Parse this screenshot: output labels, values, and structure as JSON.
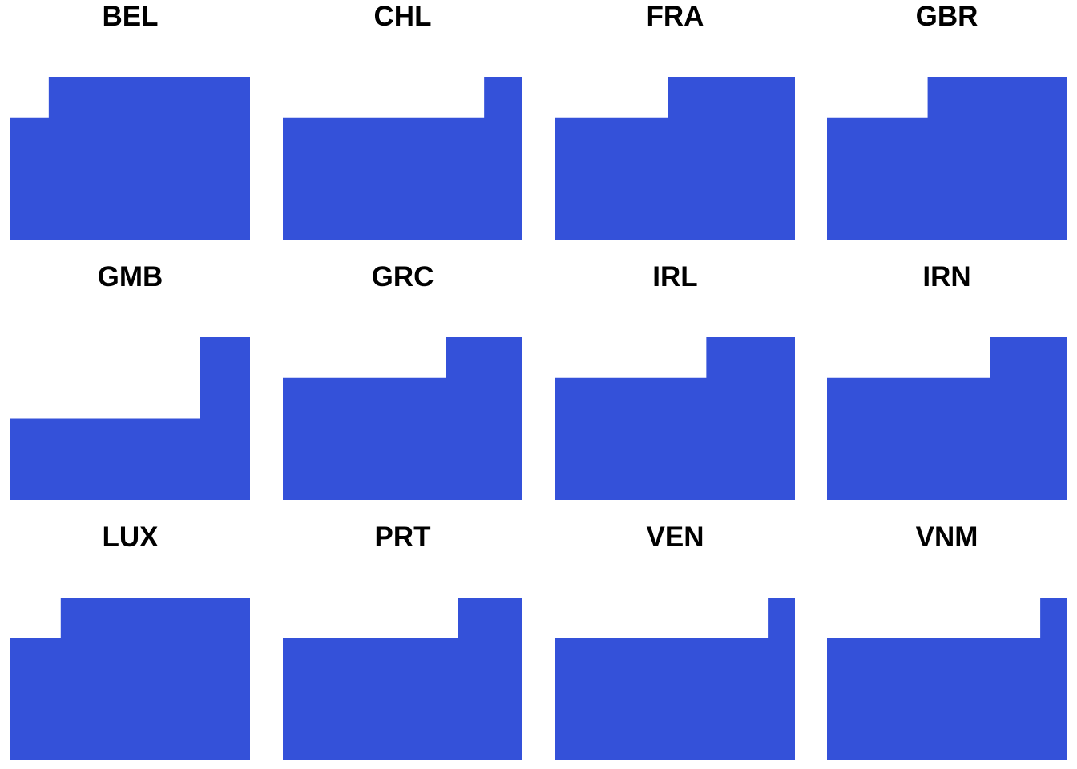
{
  "chart_data": {
    "type": "area",
    "title": "",
    "xlabel": "",
    "ylabel": "",
    "grid": false,
    "fill_color": "#3451D9",
    "ylim": [
      0,
      2
    ],
    "panels": [
      {
        "name": "BEL",
        "step_x": 0.16,
        "values": [
          1.5,
          2
        ]
      },
      {
        "name": "CHL",
        "step_x": 0.84,
        "values": [
          1.5,
          2
        ]
      },
      {
        "name": "FRA",
        "step_x": 0.47,
        "values": [
          1.5,
          2
        ]
      },
      {
        "name": "GBR",
        "step_x": 0.42,
        "values": [
          1.5,
          2
        ]
      },
      {
        "name": "GMB",
        "step_x": 0.79,
        "values": [
          1.0,
          2
        ]
      },
      {
        "name": "GRC",
        "step_x": 0.68,
        "values": [
          1.5,
          2
        ]
      },
      {
        "name": "IRL",
        "step_x": 0.63,
        "values": [
          1.5,
          2
        ]
      },
      {
        "name": "IRN",
        "step_x": 0.68,
        "values": [
          1.5,
          2
        ]
      },
      {
        "name": "LUX",
        "step_x": 0.21,
        "values": [
          1.5,
          2
        ]
      },
      {
        "name": "PRT",
        "step_x": 0.73,
        "values": [
          1.5,
          2
        ]
      },
      {
        "name": "VEN",
        "step_x": 0.89,
        "values": [
          1.5,
          2
        ]
      },
      {
        "name": "VNM",
        "step_x": 0.89,
        "values": [
          1.5,
          2
        ]
      }
    ]
  }
}
